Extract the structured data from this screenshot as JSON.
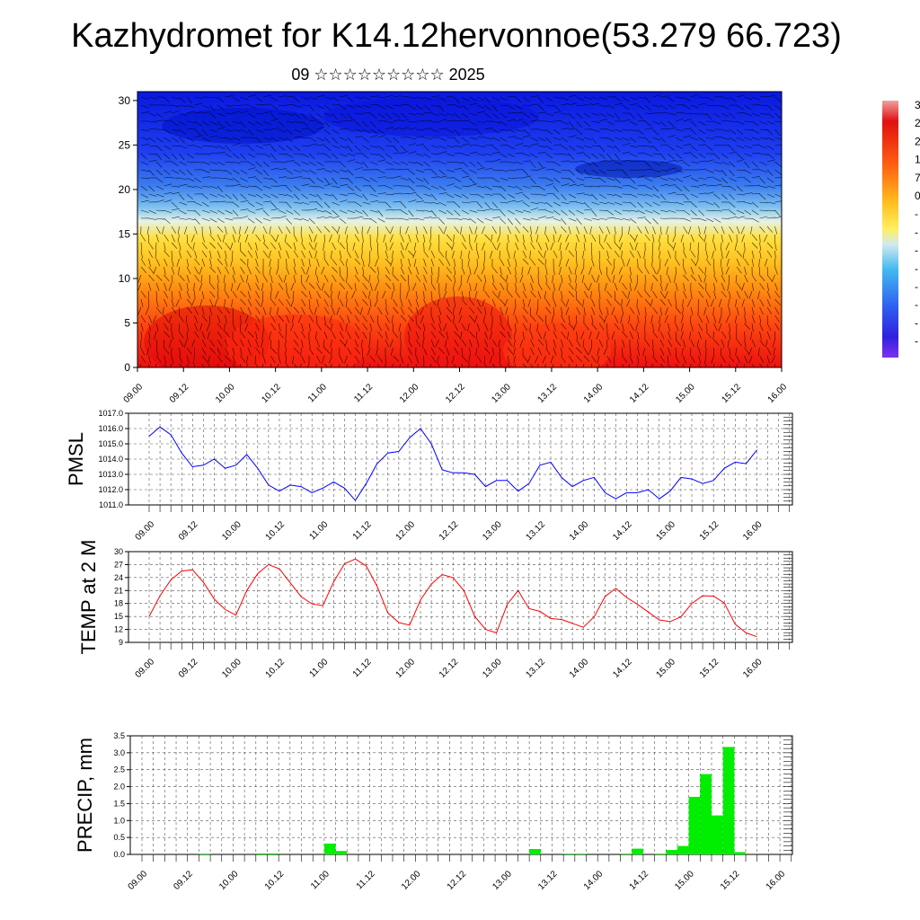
{
  "title": "Kazhydromet for K14.12hervonnoe(53.279 66.723)",
  "subtitle": "09 ☆☆☆☆☆☆☆☆☆ 2025",
  "colorbar_labels": [
    "3",
    "2",
    "2",
    "1",
    "7",
    "0",
    "-",
    "-",
    "-",
    "-",
    "-",
    "-",
    "-",
    "-"
  ],
  "chart_data": [
    {
      "type": "heatmap",
      "title": "",
      "xlabel": "",
      "ylabel": "",
      "ylim": [
        0,
        31
      ],
      "yticks": [
        0,
        5,
        10,
        15,
        20,
        25,
        30
      ],
      "xticks": [
        "09.00",
        "09.12",
        "10.00",
        "10.12",
        "11.00",
        "11.12",
        "12.00",
        "12.12",
        "13.00",
        "13.12",
        "14.00",
        "14.12",
        "15.00",
        "15.12",
        "16.00"
      ],
      "colorscale": "blue (top, cold) to red (bottom, warm) with overlaid wind barbs",
      "zero_isotherm_level": [
        17,
        17,
        17,
        17,
        16,
        16,
        15.5,
        15.5,
        15.5,
        16,
        16.5,
        16.5,
        16,
        15.5,
        15
      ]
    },
    {
      "type": "line",
      "ylabel": "PMSL",
      "ylim": [
        1011,
        1017
      ],
      "yticks": [
        "1011.0",
        "1012.0",
        "1013.0",
        "1014.0",
        "1015.0",
        "1016.0",
        "1017.0"
      ],
      "xticks": [
        "09.00",
        "09.12",
        "10.00",
        "10.12",
        "11.00",
        "11.12",
        "12.00",
        "12.12",
        "13.00",
        "13.12",
        "14.00",
        "14.12",
        "15.00",
        "15.12",
        "16.00"
      ],
      "grid": true,
      "color": "#0000ff",
      "values": [
        1015.5,
        1016.1,
        1015.6,
        1014.4,
        1013.5,
        1013.6,
        1014.0,
        1013.4,
        1013.6,
        1014.3,
        1013.4,
        1012.3,
        1011.9,
        1012.3,
        1012.2,
        1011.8,
        1012.1,
        1012.5,
        1012.1,
        1011.3,
        1012.4,
        1013.7,
        1014.4,
        1014.5,
        1015.4,
        1016.0,
        1015.0,
        1013.3,
        1013.1,
        1013.1,
        1013.0,
        1012.2,
        1012.6,
        1012.6,
        1011.9,
        1012.4,
        1013.6,
        1013.8,
        1012.8,
        1012.2,
        1012.6,
        1012.8,
        1011.8,
        1011.4,
        1011.8,
        1011.8,
        1012.0,
        1011.4,
        1011.9,
        1012.8,
        1012.7,
        1012.4,
        1012.6,
        1013.4,
        1013.8,
        1013.7,
        1014.6
      ]
    },
    {
      "type": "line",
      "ylabel": "TEMP at 2 M",
      "ylim": [
        9,
        30
      ],
      "yticks": [
        9,
        12,
        15,
        18,
        21,
        24,
        27,
        30
      ],
      "xticks": [
        "09.00",
        "09.12",
        "10.00",
        "10.12",
        "11.00",
        "11.12",
        "12.00",
        "12.12",
        "13.00",
        "13.12",
        "14.00",
        "14.12",
        "15.00",
        "15.12",
        "16.00"
      ],
      "grid": true,
      "color": "#ff0000",
      "values": [
        15.0,
        19.8,
        23.5,
        25.5,
        25.8,
        22.9,
        19.0,
        16.6,
        15.3,
        21.0,
        24.9,
        27.0,
        26.0,
        22.8,
        19.6,
        17.9,
        17.5,
        23.0,
        27.2,
        28.3,
        26.7,
        22.0,
        15.8,
        13.6,
        13.0,
        18.8,
        22.5,
        24.7,
        24.0,
        21.0,
        15.0,
        12.0,
        11.2,
        17.8,
        21.0,
        16.8,
        16.2,
        14.5,
        14.3,
        13.4,
        12.5,
        14.9,
        19.6,
        21.5,
        19.4,
        17.8,
        16.0,
        14.2,
        13.8,
        14.9,
        18.0,
        19.8,
        19.7,
        18.1,
        13.2,
        11.2,
        10.3
      ]
    },
    {
      "type": "bar",
      "ylabel": "PRECIP, mm",
      "ylim": [
        0,
        3.5
      ],
      "yticks": [
        "0.0",
        "0.5",
        "1.0",
        "1.5",
        "2.0",
        "2.5",
        "3.0",
        "3.5"
      ],
      "xticks": [
        "09.00",
        "09.12",
        "10.00",
        "10.12",
        "11.00",
        "11.12",
        "12.00",
        "12.12",
        "13.00",
        "13.12",
        "14.00",
        "14.12",
        "15.00",
        "15.12",
        "16.00"
      ],
      "grid": true,
      "color": "#00ee00",
      "values": [
        0,
        0,
        0,
        0,
        0,
        0.02,
        0,
        0,
        0,
        0,
        0.03,
        0.03,
        0,
        0,
        0,
        0,
        0.32,
        0.1,
        0,
        0,
        0,
        0,
        0,
        0,
        0,
        0,
        0,
        0,
        0,
        0,
        0,
        0,
        0,
        0,
        0.16,
        0,
        0,
        0.02,
        0.02,
        0,
        0,
        0,
        0.02,
        0.17,
        0,
        0.02,
        0.13,
        0.25,
        1.7,
        2.37,
        1.15,
        3.17,
        0.07,
        0,
        0,
        0
      ]
    }
  ]
}
